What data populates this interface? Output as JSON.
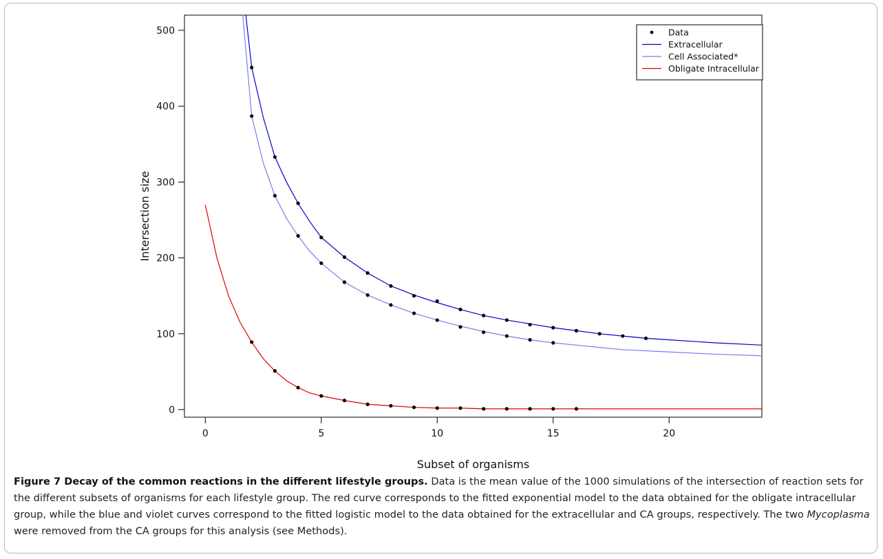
{
  "chart_data": {
    "type": "scatter",
    "xlabel": "Subset of organisms",
    "ylabel": "Intersection size",
    "xlim": [
      -0.9,
      24.0
    ],
    "ylim": [
      -10,
      520
    ],
    "x_ticks": [
      "0",
      "5",
      "10",
      "15",
      "20"
    ],
    "x_tick_values": [
      0,
      5,
      10,
      15,
      20
    ],
    "y_ticks": [
      "0",
      "100",
      "200",
      "300",
      "400",
      "500"
    ],
    "y_tick_values": [
      0,
      100,
      200,
      300,
      400,
      500
    ],
    "grid": false,
    "legend_position": "top-right",
    "legend": [
      {
        "label": "Data",
        "kind": "point",
        "color": "#000000"
      },
      {
        "label": "Extracellular",
        "kind": "line",
        "color": "#0000cc"
      },
      {
        "label": "Cell Associated*",
        "kind": "line",
        "color": "#7b7bee"
      },
      {
        "label": "Obligate Intracellular",
        "kind": "line",
        "color": "#dd0000"
      }
    ],
    "series": [
      {
        "name": "Extracellular",
        "color": "#0000cc",
        "points": [
          [
            2,
            451
          ],
          [
            3,
            333
          ],
          [
            4,
            272
          ],
          [
            5,
            227
          ],
          [
            6,
            201
          ],
          [
            7,
            180
          ],
          [
            8,
            163
          ],
          [
            9,
            150
          ],
          [
            10,
            143
          ],
          [
            11,
            132
          ],
          [
            12,
            124
          ],
          [
            13,
            118
          ],
          [
            14,
            112
          ],
          [
            15,
            108
          ],
          [
            16,
            104
          ],
          [
            17,
            100
          ],
          [
            18,
            97
          ],
          [
            19,
            94
          ]
        ],
        "curve": [
          [
            1.45,
            520
          ],
          [
            1.6,
            560
          ],
          [
            2,
            451
          ],
          [
            2.5,
            385
          ],
          [
            3,
            333
          ],
          [
            3.5,
            300
          ],
          [
            4,
            272
          ],
          [
            4.5,
            248
          ],
          [
            5,
            227
          ],
          [
            6,
            201
          ],
          [
            7,
            180
          ],
          [
            8,
            163
          ],
          [
            9,
            151
          ],
          [
            10,
            141
          ],
          [
            11,
            132
          ],
          [
            12,
            124
          ],
          [
            13,
            118
          ],
          [
            14,
            113
          ],
          [
            15,
            108
          ],
          [
            16,
            104
          ],
          [
            17,
            100
          ],
          [
            18,
            97
          ],
          [
            19,
            94
          ],
          [
            20,
            92
          ],
          [
            22,
            88
          ],
          [
            24,
            85
          ]
        ]
      },
      {
        "name": "Cell Associated*",
        "color": "#7b7bee",
        "points": [
          [
            2,
            387
          ],
          [
            3,
            282
          ],
          [
            4,
            229
          ],
          [
            5,
            193
          ],
          [
            6,
            168
          ],
          [
            7,
            151
          ],
          [
            8,
            138
          ],
          [
            9,
            127
          ],
          [
            10,
            118
          ],
          [
            11,
            109
          ],
          [
            12,
            102
          ],
          [
            13,
            97
          ],
          [
            14,
            92
          ],
          [
            15,
            88
          ]
        ],
        "curve": [
          [
            1.3,
            520
          ],
          [
            1.5,
            560
          ],
          [
            2,
            387
          ],
          [
            2.5,
            325
          ],
          [
            3,
            282
          ],
          [
            3.5,
            252
          ],
          [
            4,
            229
          ],
          [
            4.5,
            209
          ],
          [
            5,
            193
          ],
          [
            6,
            168
          ],
          [
            7,
            151
          ],
          [
            8,
            138
          ],
          [
            9,
            127
          ],
          [
            10,
            118
          ],
          [
            11,
            110
          ],
          [
            12,
            103
          ],
          [
            13,
            97
          ],
          [
            14,
            92
          ],
          [
            15,
            88
          ],
          [
            16,
            85
          ],
          [
            17,
            82
          ],
          [
            18,
            79
          ],
          [
            20,
            76
          ],
          [
            22,
            73
          ],
          [
            24,
            71
          ]
        ]
      },
      {
        "name": "Obligate Intracellular",
        "color": "#dd0000",
        "points": [
          [
            2,
            89
          ],
          [
            3,
            51
          ],
          [
            4,
            29
          ],
          [
            5,
            18
          ],
          [
            6,
            12
          ],
          [
            7,
            7
          ],
          [
            8,
            5
          ],
          [
            9,
            3
          ],
          [
            10,
            2
          ],
          [
            11,
            2
          ],
          [
            12,
            1
          ],
          [
            13,
            1
          ],
          [
            14,
            1
          ],
          [
            15,
            1
          ],
          [
            16,
            1
          ]
        ],
        "curve": [
          [
            0,
            270
          ],
          [
            0.5,
            200
          ],
          [
            1,
            150
          ],
          [
            1.5,
            115
          ],
          [
            2,
            89
          ],
          [
            2.5,
            67
          ],
          [
            3,
            51
          ],
          [
            3.5,
            38
          ],
          [
            4,
            29
          ],
          [
            4.5,
            22
          ],
          [
            5,
            18
          ],
          [
            6,
            12
          ],
          [
            7,
            7
          ],
          [
            8,
            5
          ],
          [
            9,
            3
          ],
          [
            10,
            2
          ],
          [
            11,
            2
          ],
          [
            12,
            1
          ],
          [
            14,
            1
          ],
          [
            16,
            1
          ],
          [
            20,
            1
          ],
          [
            24,
            1
          ]
        ]
      }
    ]
  },
  "caption": {
    "title": "Figure 7 Decay of the common reactions in the different lifestyle groups.",
    "body_part1": " Data is the mean value of the 1000 simulations of the intersection of reaction sets for the different subsets of organisms for each lifestyle group. The red curve corresponds to the fitted exponential model to the data obtained for the obligate intracellular group, while the blue and violet curves correspond to the fitted logistic model to the data obtained for the extracellular and CA groups, respectively. The two ",
    "italic_word": "Mycoplasma",
    "body_part2": " were removed from the CA groups for this analysis (see Methods)."
  }
}
